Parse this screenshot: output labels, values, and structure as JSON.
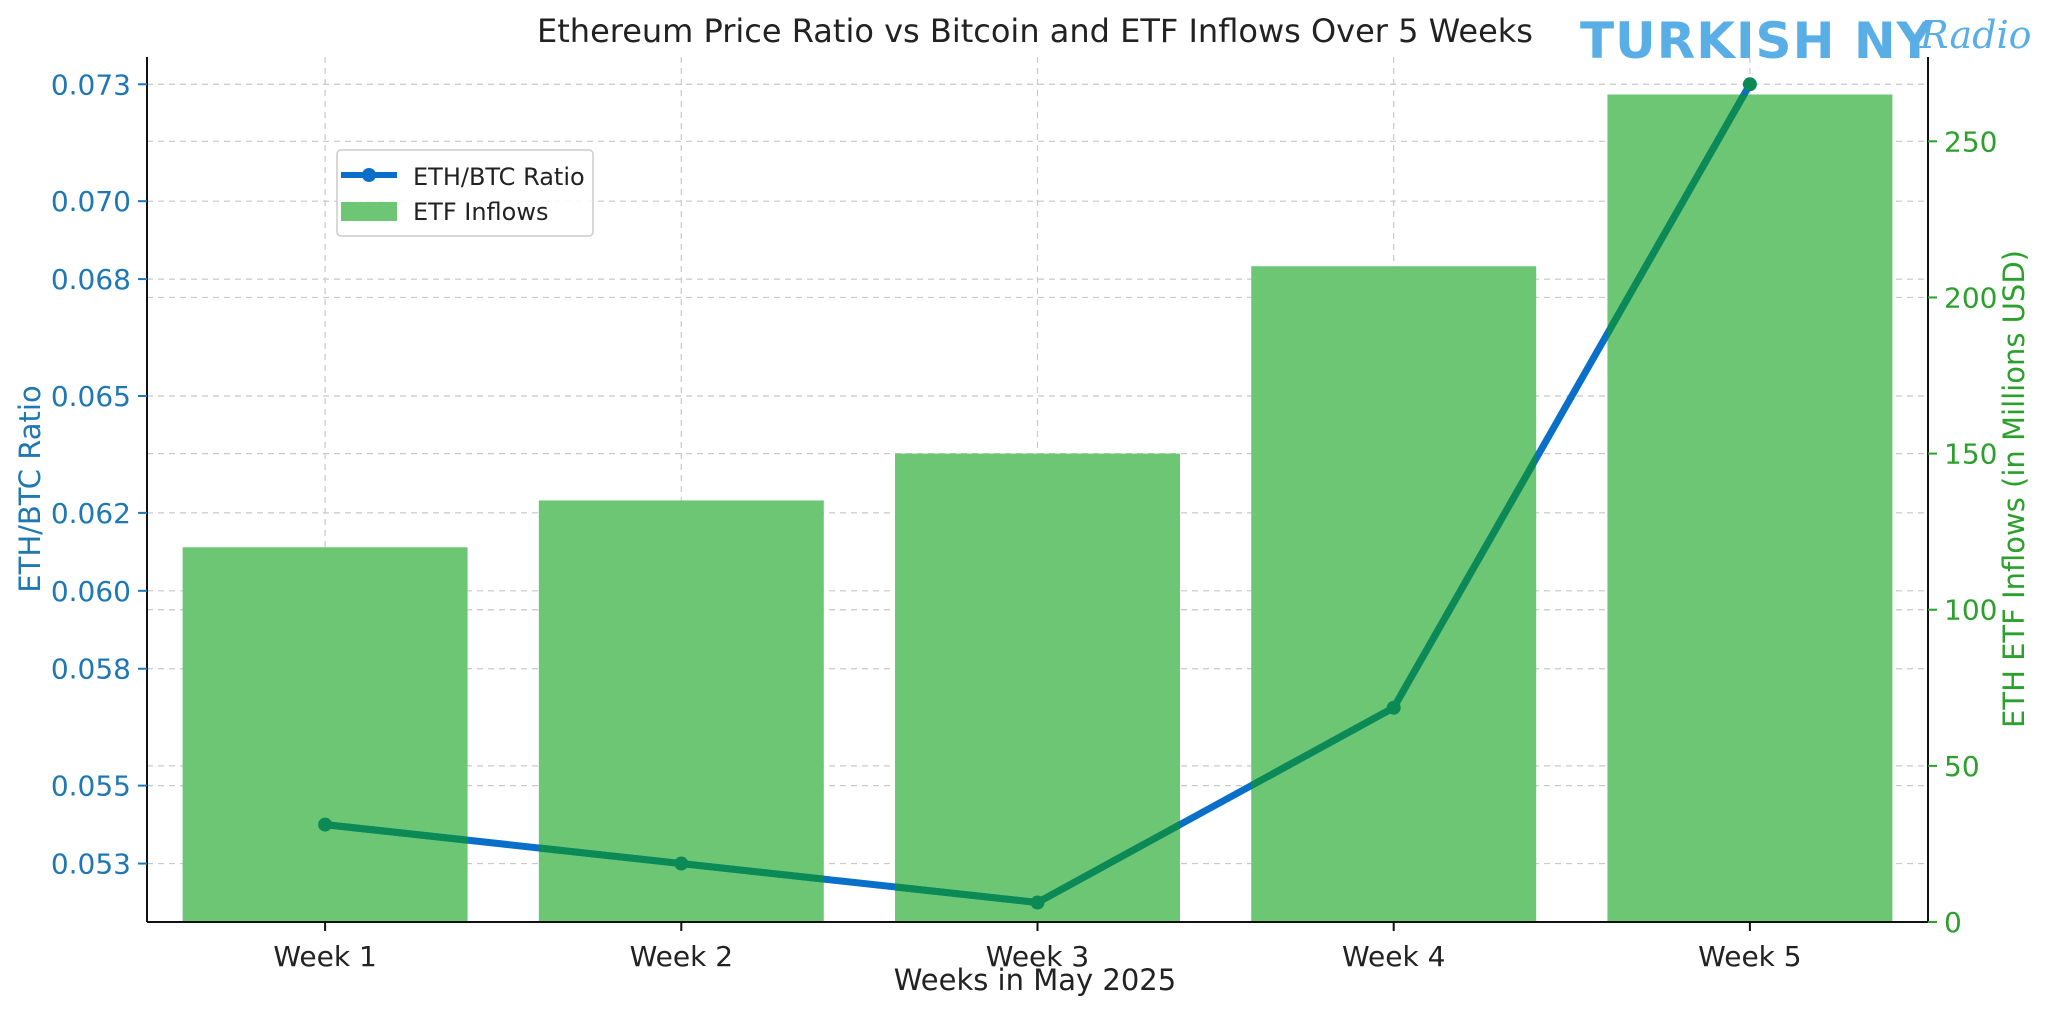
{
  "watermark": {
    "main": "TURKISH NY",
    "script": "Radio",
    "color": "#5aaee6"
  },
  "chart_data": {
    "type": "bar+line",
    "title": "Ethereum Price Ratio vs Bitcoin and ETF Inflows Over 5 Weeks",
    "xlabel": "Weeks in May 2025",
    "categories": [
      "Week 1",
      "Week 2",
      "Week 3",
      "Week 4",
      "Week 5"
    ],
    "y_left": {
      "label": "ETH/BTC Ratio",
      "color": "#1f77b4",
      "ticks": [
        0.053,
        0.055,
        0.058,
        0.06,
        0.062,
        0.065,
        0.068,
        0.07,
        0.073
      ],
      "tick_labels": [
        "0.053",
        "0.055",
        "0.058",
        "0.060",
        "0.062",
        "0.065",
        "0.068",
        "0.070",
        "0.073"
      ],
      "ylim": [
        0.0515,
        0.0737
      ]
    },
    "y_right": {
      "label": "ETH ETF Inflows (in Millions USD)",
      "color": "#2ca02c",
      "ticks": [
        0,
        50,
        100,
        150,
        200,
        250
      ],
      "tick_labels": [
        "0",
        "50",
        "100",
        "150",
        "200",
        "250"
      ],
      "ylim": [
        0,
        277
      ]
    },
    "series": [
      {
        "name": "ETH/BTC Ratio",
        "type": "line",
        "axis": "left",
        "color": "#0a6fc9",
        "overlay_color": "#0b8a55",
        "values": [
          0.054,
          0.053,
          0.052,
          0.057,
          0.073
        ]
      },
      {
        "name": "ETF Inflows",
        "type": "bar",
        "axis": "right",
        "color": "#6cc674",
        "values": [
          120,
          135,
          150,
          210,
          265
        ]
      }
    ],
    "grid": true,
    "legend_position": "upper-left"
  }
}
